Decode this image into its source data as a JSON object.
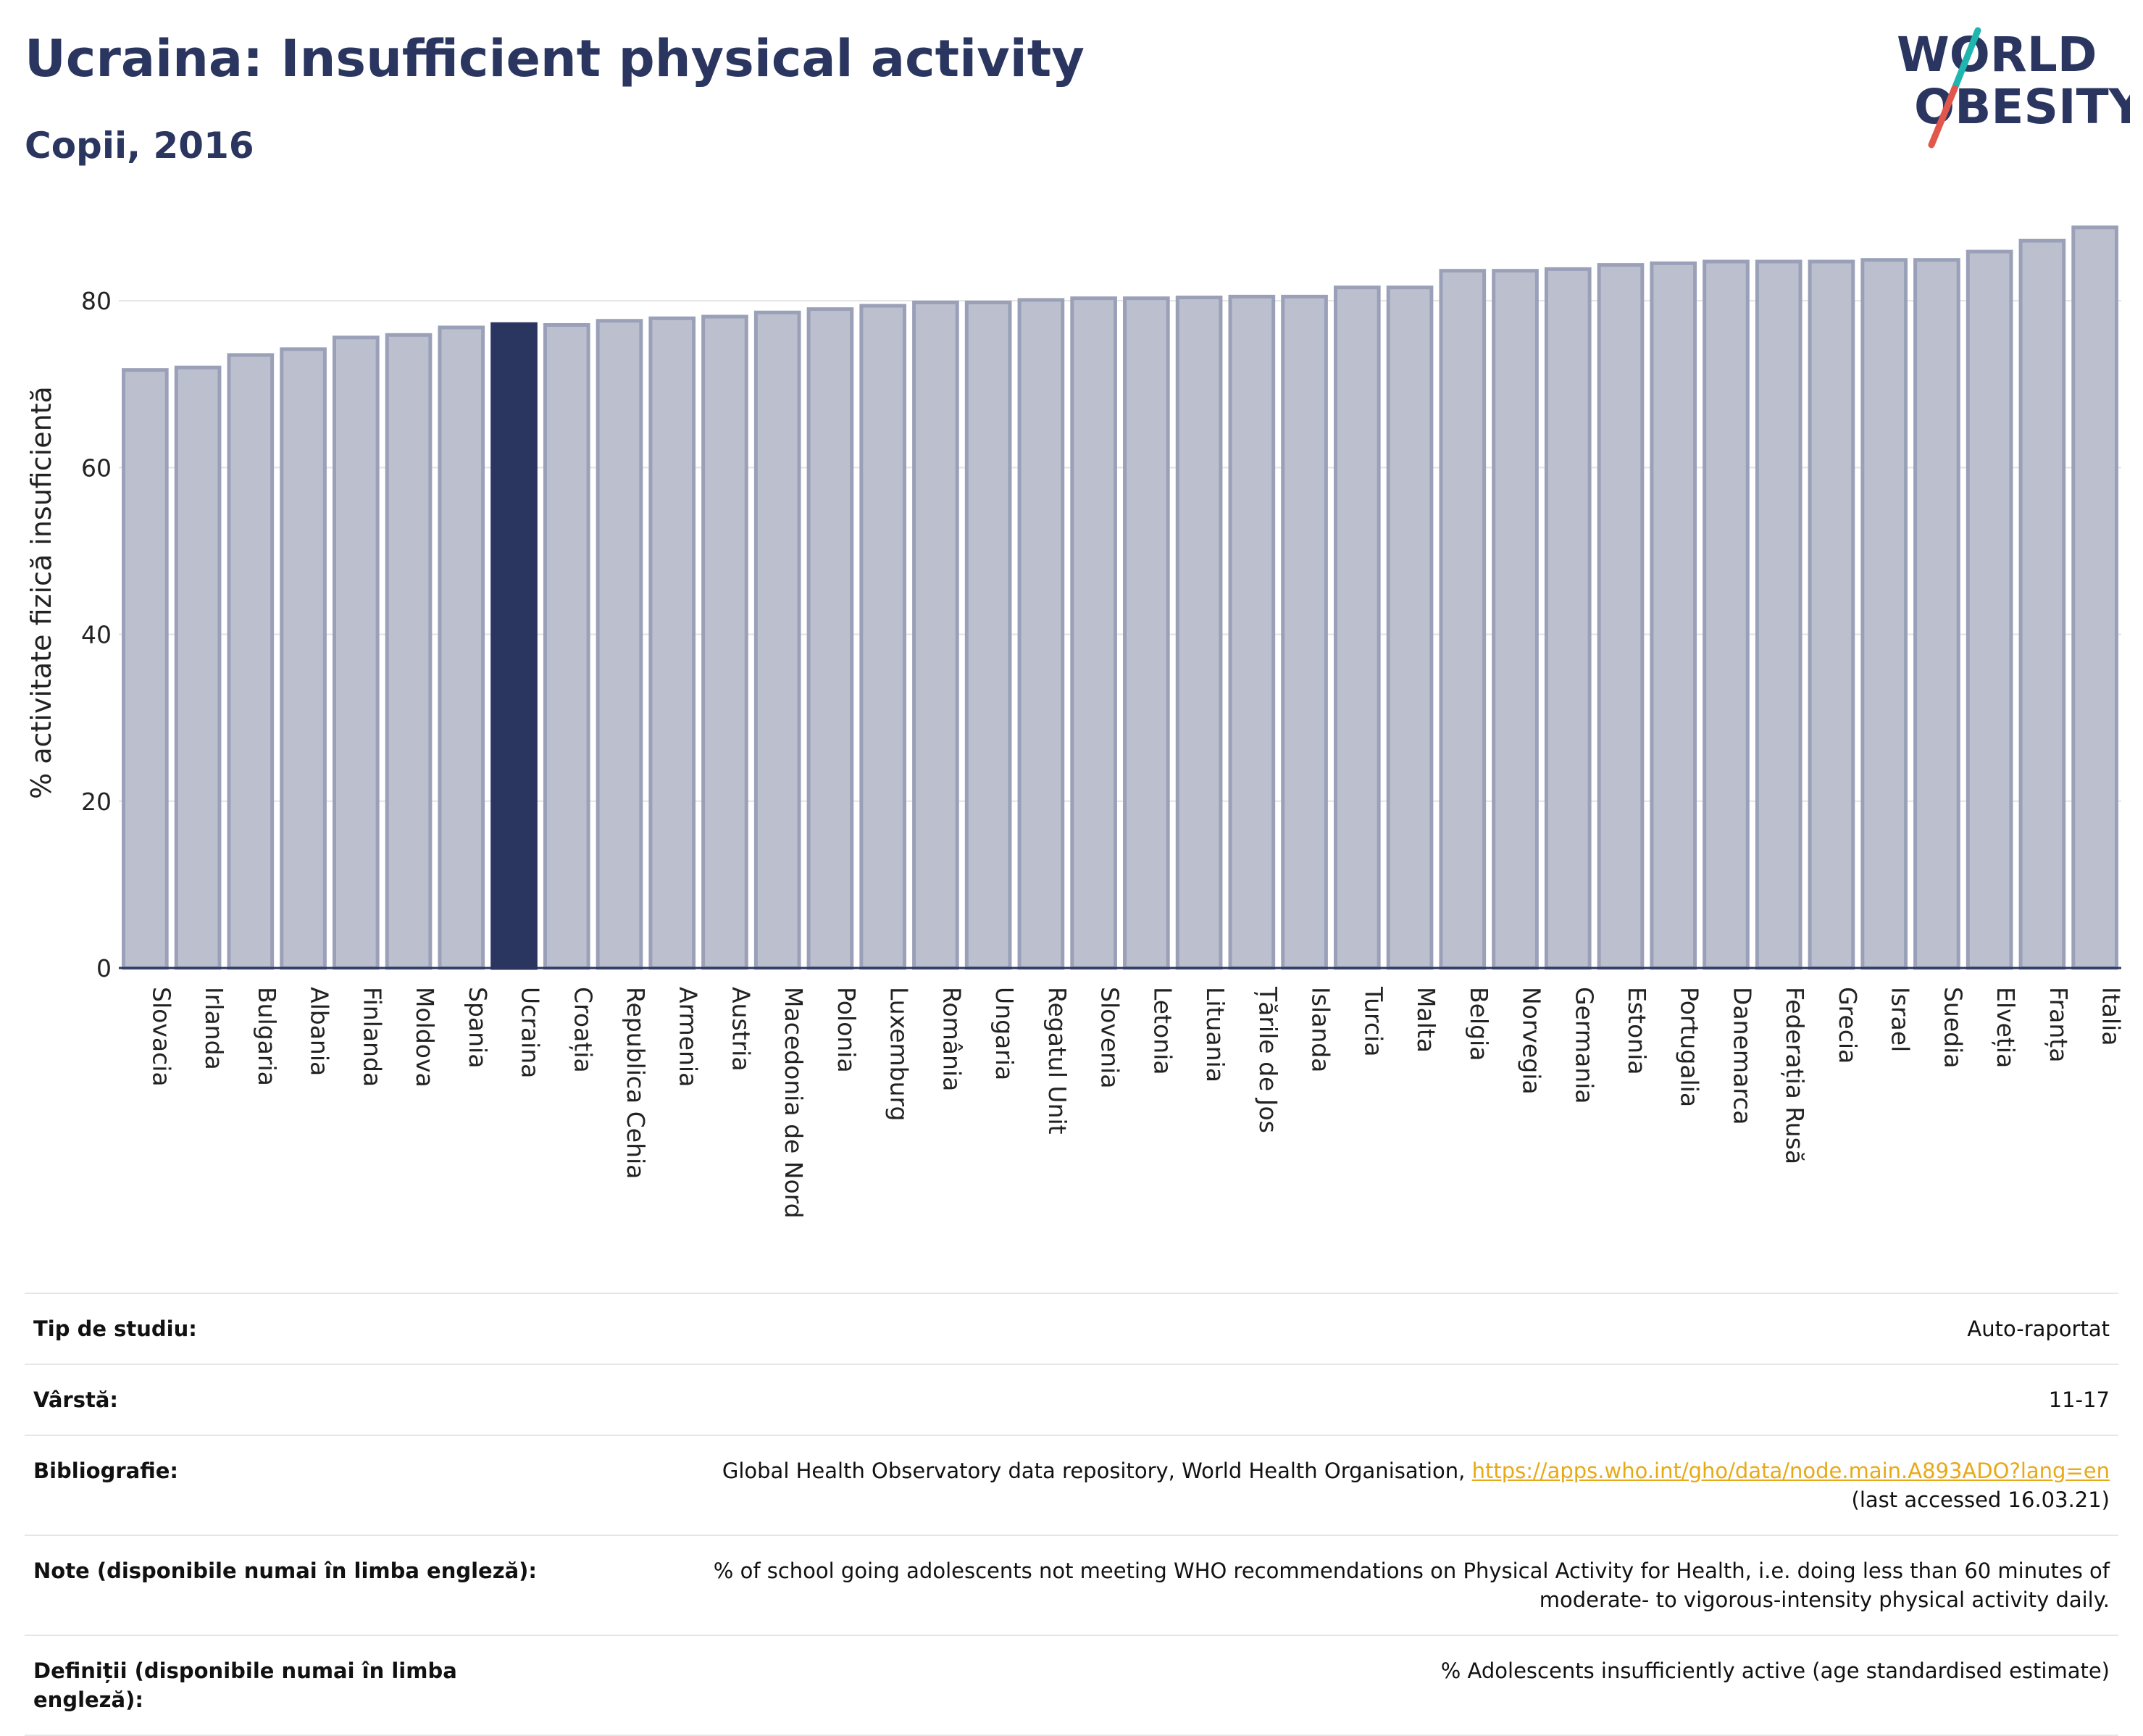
{
  "header": {
    "title": "Ucraina: Insufficient physical activity",
    "subtitle": "Copii, 2016"
  },
  "logo": {
    "line1": "WORLD",
    "line2": "OBESITY",
    "colors": {
      "text": "#2a3560",
      "slash_teal": "#1fb6b0",
      "slash_red": "#e2574c"
    }
  },
  "chart_data": {
    "type": "bar",
    "title": "Ucraina: Insufficient physical activity",
    "subtitle": "Copii, 2016",
    "xlabel": "",
    "ylabel": "% activitate fizică insuficientă",
    "ylim": [
      0,
      90
    ],
    "yticks": [
      0,
      20,
      40,
      60,
      80
    ],
    "grid": true,
    "highlight": "Ucraina",
    "colors": {
      "bar": "#bcc0ce",
      "bar_edge": "#9aa0b8",
      "highlight": "#2a3560",
      "grid": "#e3e3e3",
      "axis": "#2a3560"
    },
    "categories": [
      "Slovacia",
      "Irlanda",
      "Bulgaria",
      "Albania",
      "Finlanda",
      "Moldova",
      "Spania",
      "Ucraina",
      "Croația",
      "Republica Cehia",
      "Armenia",
      "Austria",
      "Macedonia de Nord",
      "Polonia",
      "Luxemburg",
      "România",
      "Ungaria",
      "Regatul Unit",
      "Slovenia",
      "Letonia",
      "Lituania",
      "Țările de Jos",
      "Islanda",
      "Turcia",
      "Malta",
      "Belgia",
      "Norvegia",
      "Germania",
      "Estonia",
      "Portugalia",
      "Danemarca",
      "Federația Rusă",
      "Grecia",
      "Israel",
      "Suedia",
      "Elveția",
      "Franța",
      "Italia"
    ],
    "values": [
      71.7,
      72.0,
      73.5,
      74.2,
      75.6,
      75.9,
      76.8,
      77.2,
      77.1,
      77.6,
      77.9,
      78.1,
      78.6,
      79.0,
      79.4,
      79.8,
      79.8,
      80.1,
      80.3,
      80.3,
      80.4,
      80.5,
      80.5,
      81.6,
      81.6,
      83.6,
      83.6,
      83.8,
      84.3,
      84.5,
      84.7,
      84.7,
      84.7,
      84.9,
      84.9,
      85.9,
      87.2,
      88.8
    ]
  },
  "info": {
    "rows": [
      {
        "key": "Tip de studiu:",
        "value": "Auto-raportat"
      },
      {
        "key": "Vârstă:",
        "value": "11-17"
      },
      {
        "key": "Bibliografie:",
        "value": "Global Health Observatory data repository, World Health Organisation, ",
        "link": "https://apps.who.int/gho/data/node.main.A893ADO?lang=en",
        "value2": "(last accessed 16.03.21)"
      },
      {
        "key": "Note (disponibile numai în limba engleză):",
        "value": "% of school going adolescents not meeting WHO recommendations on Physical Activity for Health, i.e. doing less than 60 minutes of",
        "value2": "moderate- to vigorous-intensity physical activity daily."
      },
      {
        "key": "Definiții (disponibile numai în limba",
        "key2": "engleză):",
        "value": "% Adolescents insufficiently active (age standardised estimate)"
      }
    ]
  }
}
